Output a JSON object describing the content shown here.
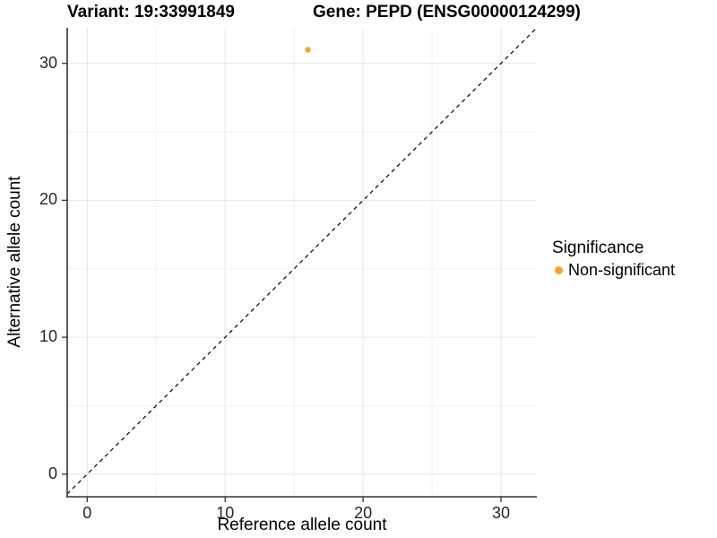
{
  "chart_data": {
    "type": "scatter",
    "titles": {
      "left": "Variant: 19:33991849",
      "right": "Gene: PEPD (ENSG00000124299)"
    },
    "xlabel": "Reference allele count",
    "ylabel": "Alternative allele count",
    "xlim": [
      -1.45,
      32.6
    ],
    "ylim": [
      -1.65,
      32.6
    ],
    "x_ticks": [
      0,
      10,
      20,
      30
    ],
    "y_ticks": [
      0,
      10,
      20,
      30
    ],
    "x_minor_ticks": [
      5,
      15,
      25
    ],
    "y_minor_ticks": [
      5,
      15,
      25
    ],
    "grid": {
      "major_color": "#e6e6e6",
      "minor_color": "#f2f2f2"
    },
    "axis_line_color": "#333333",
    "tick_color": "#333333",
    "identity_line": {
      "type": "y=x",
      "style": "dashed",
      "color": "#000000"
    },
    "series": [
      {
        "name": "Non-significant",
        "color": "#F9A32B",
        "marker": "circle",
        "points": [
          {
            "x": 16,
            "y": 31
          }
        ]
      }
    ],
    "legend": {
      "title": "Significance",
      "position": "right",
      "items": [
        {
          "label": "Non-significant",
          "color": "#F9A32B",
          "marker": "circle"
        }
      ]
    }
  }
}
